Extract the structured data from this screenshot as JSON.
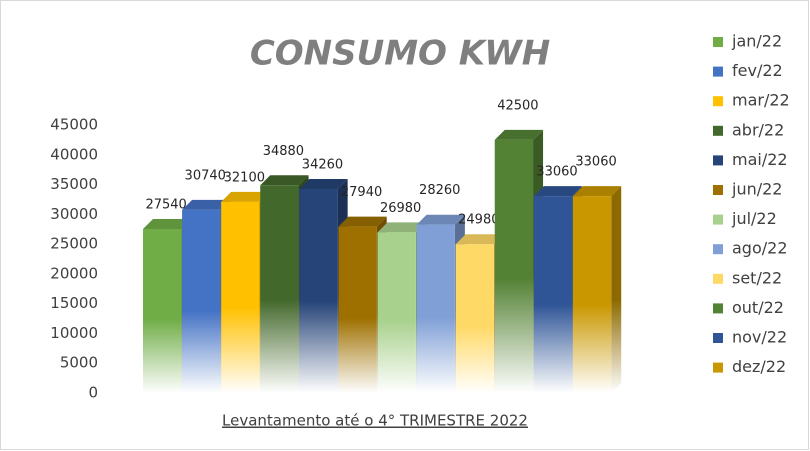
{
  "chart_data": {
    "type": "bar",
    "title": "CONSUMO KWH",
    "x_label": "Levantamento até o 4° TRIMESTRE 2022",
    "categories": [
      "jan/22",
      "fev/22",
      "mar/22",
      "abr/22",
      "mai/22",
      "jun/22",
      "jul/22",
      "ago/22",
      "set/22",
      "out/22",
      "nov/22",
      "dez/22"
    ],
    "values": [
      27540,
      30740,
      32100,
      34880,
      34260,
      27940,
      26980,
      28260,
      24980,
      42500,
      33060,
      33060
    ],
    "colors": [
      "#70ad47",
      "#4472c4",
      "#ffc000",
      "#43682b",
      "#264478",
      "#9e7000",
      "#a9d18e",
      "#7f9fd6",
      "#ffd966",
      "#548235",
      "#2f5597",
      "#c99700"
    ],
    "ylim": [
      0,
      45000
    ],
    "yticks": [
      0,
      5000,
      10000,
      15000,
      20000,
      25000,
      30000,
      35000,
      40000,
      45000
    ],
    "legend": "right"
  }
}
